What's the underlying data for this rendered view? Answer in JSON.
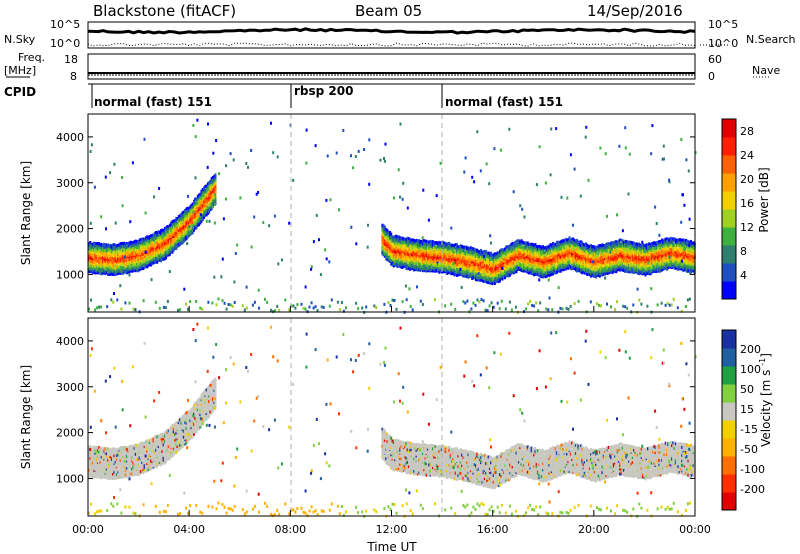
{
  "header": {
    "station": "Blackstone (fitACF)",
    "beam": "Beam 05",
    "date": "14/Sep/2016"
  },
  "top_panels": {
    "nsky_label": "N.Sky",
    "nsky_ticks": [
      "10^5",
      "10^0"
    ],
    "nsearch_label": "N.Search",
    "nsearch_ticks": [
      "10^5",
      "10^0"
    ],
    "freq_label_1": "Freq.",
    "freq_label_2": "[MHz]",
    "freq_ticks": [
      "18",
      "8"
    ],
    "nave_label": "Nave",
    "nave_ticks": [
      "60",
      "0"
    ],
    "cpid_label": "CPID",
    "cpid_segments": [
      {
        "label": "normal (fast) 151",
        "start_hour": 0
      },
      {
        "label": "rbsp 200",
        "start_hour": 8
      },
      {
        "label": "normal (fast) 151",
        "start_hour": 14
      }
    ]
  },
  "chart_data": [
    {
      "type": "heatmap",
      "title": "",
      "xlabel": "",
      "ylabel": "Slant Range [km]",
      "xlim_hours": [
        0,
        24
      ],
      "ylim": [
        180,
        4500
      ],
      "yticks": [
        1000,
        2000,
        3000,
        4000
      ],
      "colorbar_label": "Power [dB]",
      "colorbar_ticks": [
        4,
        8,
        12,
        16,
        20,
        24,
        28
      ],
      "colorbar_range": [
        0,
        30
      ],
      "colorbar_colors": [
        "#0000ff",
        "#1f4fbf",
        "#2f7f6f",
        "#3faf3f",
        "#a0d020",
        "#f0d000",
        "#ff9f00",
        "#ff6000",
        "#ff2000",
        "#e00000"
      ],
      "features": [
        {
          "name": "main-band",
          "hours": [
            0,
            1,
            2,
            3,
            4,
            5
          ],
          "ranges": [
            1400,
            1350,
            1450,
            1700,
            2200,
            2900
          ]
        },
        {
          "name": "main-band-2",
          "hours": [
            11.6,
            12,
            13,
            14,
            15,
            16,
            17,
            18,
            19,
            20,
            21,
            22,
            23,
            24
          ],
          "ranges": [
            1800,
            1550,
            1450,
            1400,
            1300,
            1150,
            1450,
            1300,
            1500,
            1300,
            1450,
            1350,
            1500,
            1400
          ]
        }
      ]
    },
    {
      "type": "heatmap",
      "title": "",
      "xlabel": "Time UT",
      "ylabel": "Slant Range [km]",
      "xlim_hours": [
        0,
        24
      ],
      "ylim": [
        180,
        4500
      ],
      "yticks": [
        1000,
        2000,
        3000,
        4000
      ],
      "xtick_labels": [
        "00:00",
        "04:00",
        "08:00",
        "12:00",
        "16:00",
        "20:00",
        "00:00"
      ],
      "colorbar_label": "Velocity [m s^-1]",
      "colorbar_ticks": [
        200,
        100,
        50,
        15,
        -15,
        -50,
        -100,
        -200
      ],
      "colorbar_colors": [
        "#1a2fa0",
        "#2060a0",
        "#20a040",
        "#80d040",
        "#c8c8c0",
        "#f0d000",
        "#ffb000",
        "#ff7000",
        "#ff3000",
        "#e00000"
      ]
    }
  ]
}
